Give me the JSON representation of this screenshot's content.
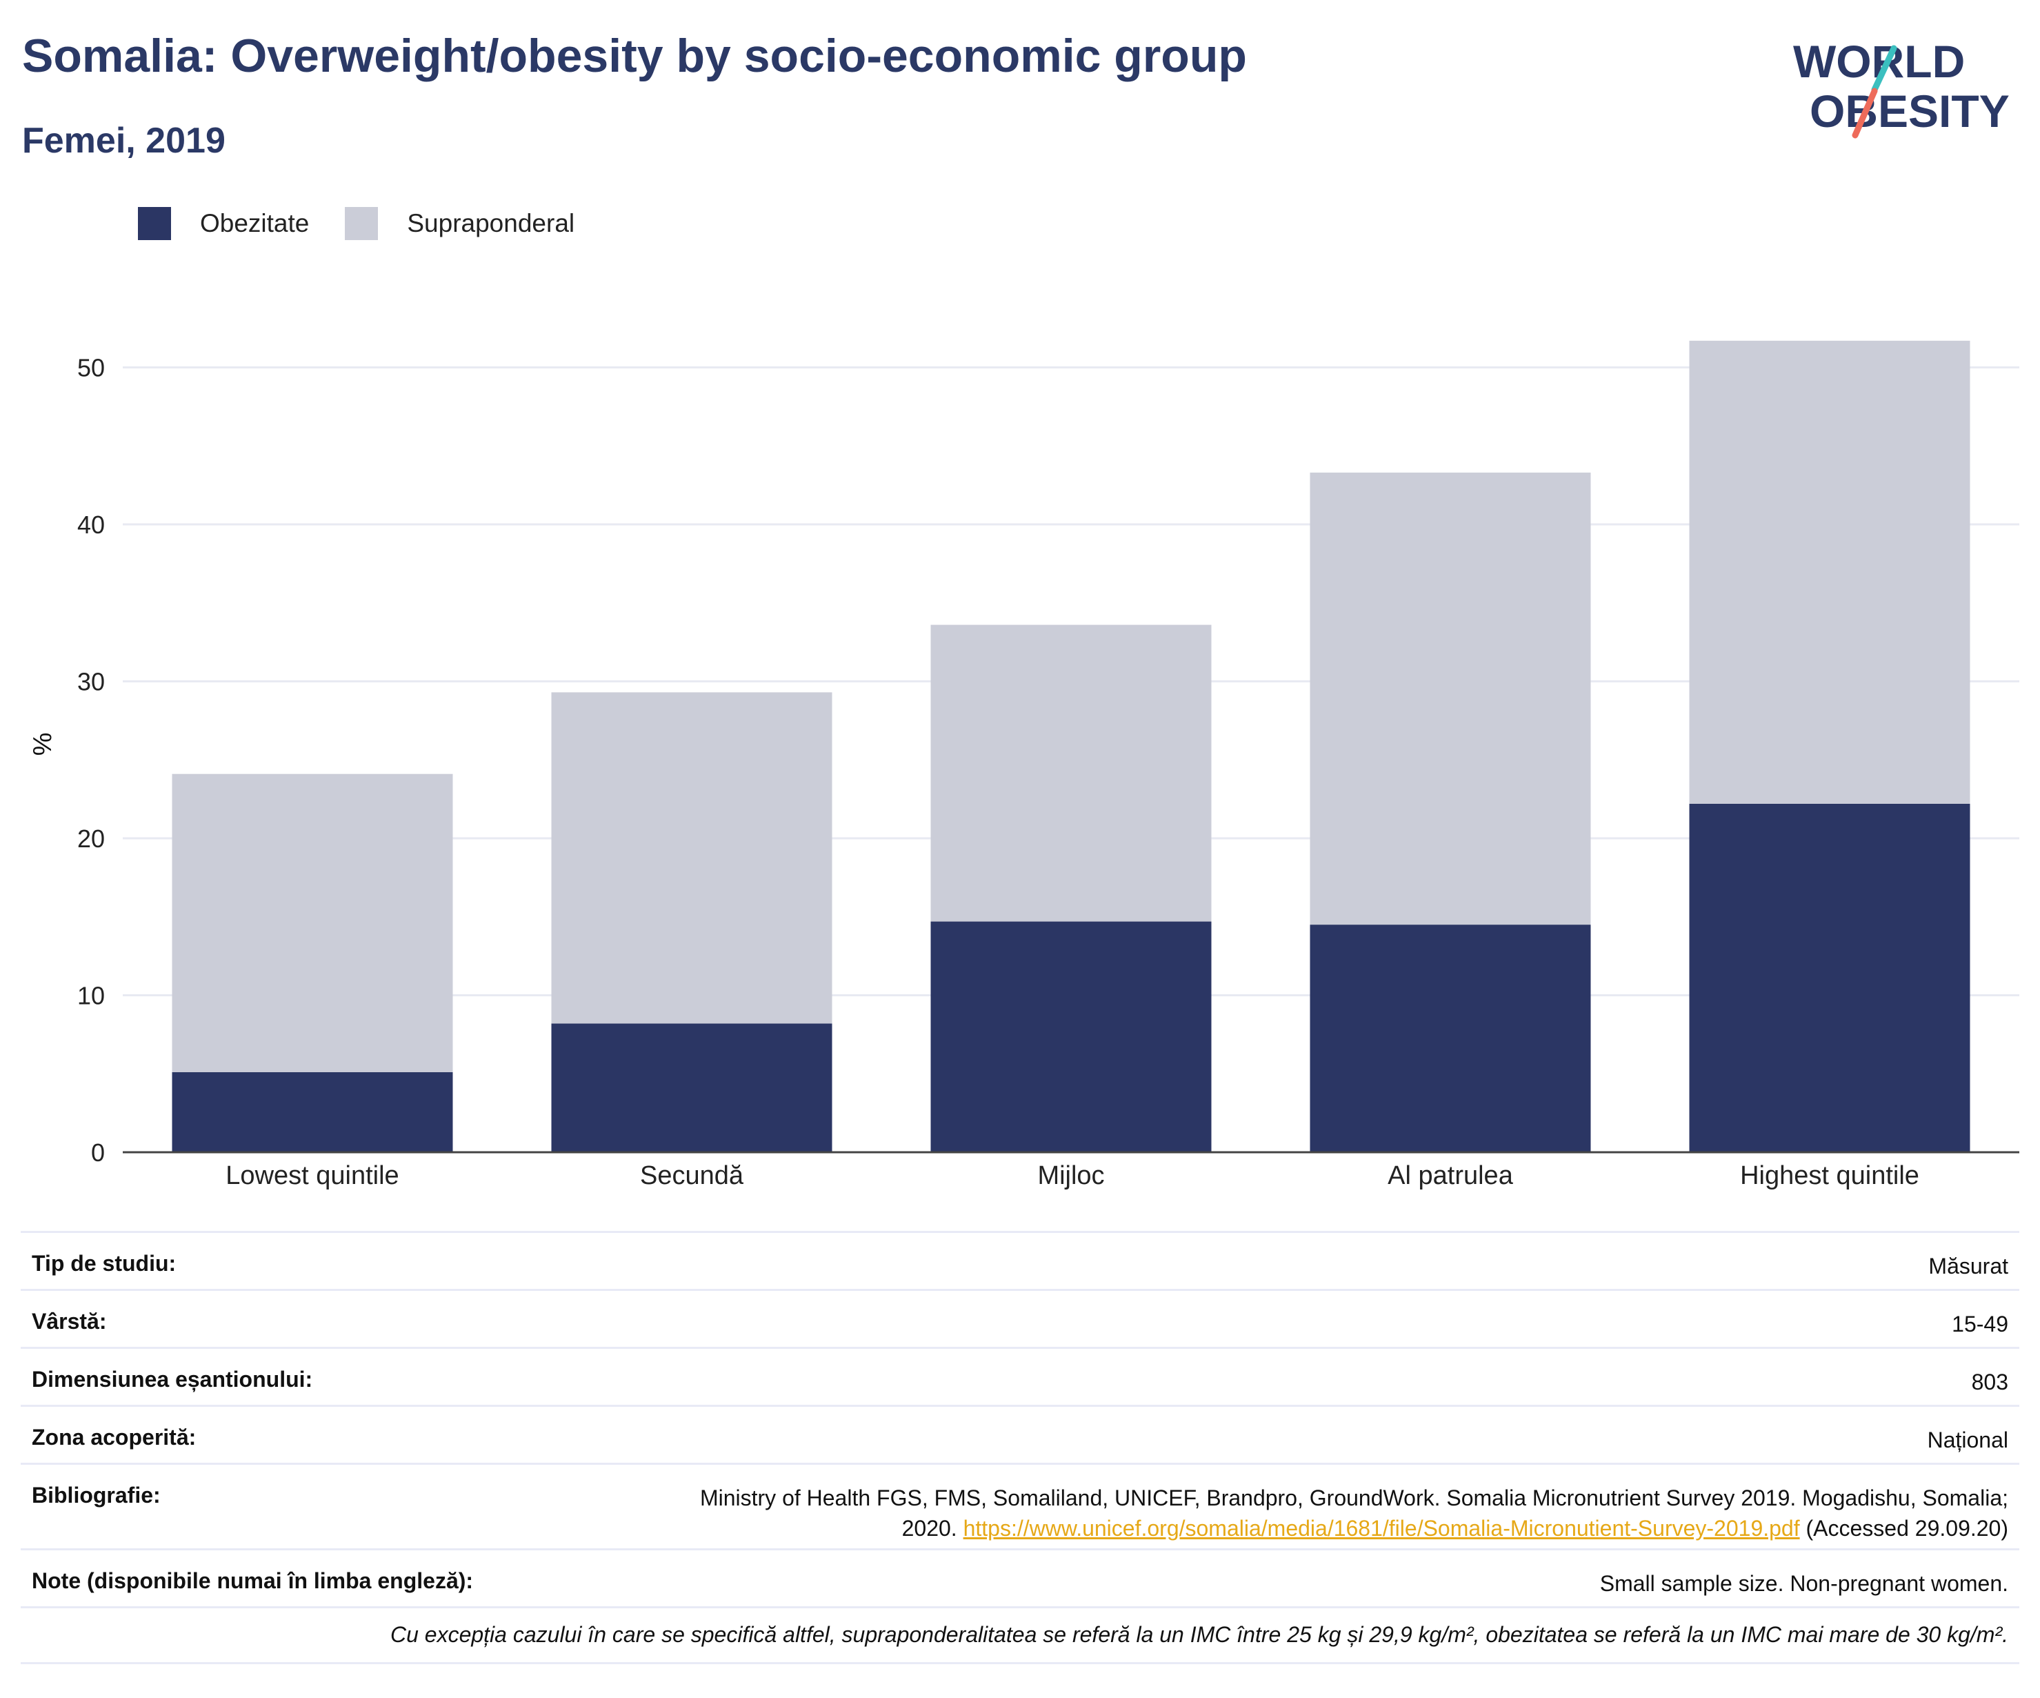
{
  "header": {
    "title": "Somalia: Overweight/obesity by socio-economic group",
    "subtitle": "Femei, 2019"
  },
  "logo": {
    "line1": "WORLD",
    "line2": "OBESITY",
    "icon": "world-obesity-logo"
  },
  "colors": {
    "obesity": "#2b3664",
    "overweight": "#cbcdd8",
    "title": "#2b3966",
    "link": "#e6a817",
    "logo_teal": "#3bbfbf",
    "logo_coral": "#ee6b5a"
  },
  "chart_data": {
    "type": "bar",
    "stacked": true,
    "categories": [
      "Lowest quintile",
      "Secundă",
      "Mijloc",
      "Al patrulea",
      "Highest quintile"
    ],
    "series": [
      {
        "name": "Obezitate",
        "values": [
          5.1,
          8.2,
          14.7,
          14.5,
          22.2
        ]
      },
      {
        "name": "Supraponderal",
        "values": [
          19.0,
          21.1,
          18.9,
          28.8,
          29.5
        ]
      }
    ],
    "ylabel": "%",
    "ylim": [
      0,
      52
    ],
    "yticks": [
      0,
      10,
      20,
      30,
      40,
      50
    ],
    "grid": true,
    "legend_position": "top-left"
  },
  "info": {
    "rows": [
      {
        "label": "Tip de studiu:",
        "value": "Măsurat"
      },
      {
        "label": "Vârstă:",
        "value": "15-49"
      },
      {
        "label": "Dimensiunea eșantionului:",
        "value": "803"
      },
      {
        "label": "Zona acoperită:",
        "value": "Național"
      }
    ],
    "bibliography": {
      "label": "Bibliografie:",
      "text_line1": "Ministry of Health FGS, FMS, Somaliland, UNICEF, Brandpro, GroundWork. Somalia Micronutrient Survey 2019. Mogadishu, Somalia;",
      "text_line2_prefix": "2020. ",
      "link": "https://www.unicef.org/somalia/media/1681/file/Somalia-Micronutient-Survey-2019.pdf",
      "text_line2_suffix": " (Accessed 29.09.20)"
    },
    "notes": {
      "label": "Note (disponibile numai în limba engleză):",
      "value": "Small sample size. Non-pregnant women."
    },
    "footnote": "Cu excepția cazului în care se specifică altfel, supraponderalitatea se referă la un IMC între 25 kg și 29,9 kg/m², obezitatea se referă la un IMC mai mare de 30 kg/m²."
  }
}
